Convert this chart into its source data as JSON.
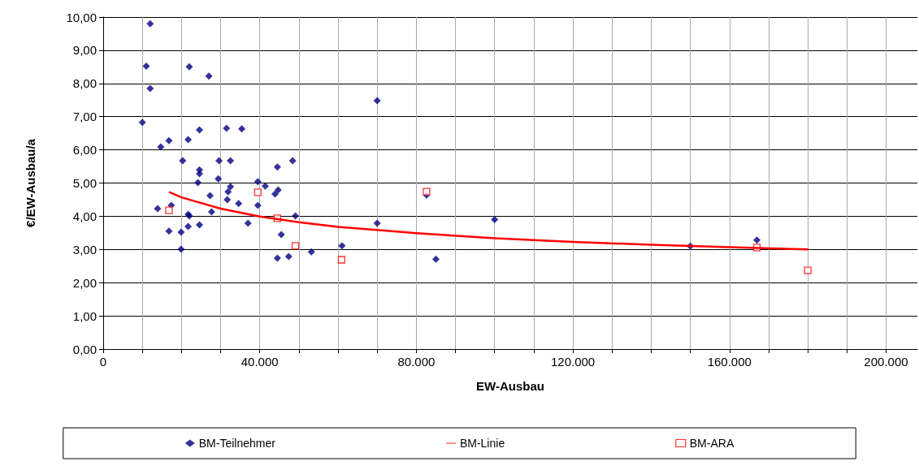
{
  "chart_data": {
    "type": "scatter",
    "xlabel": "EW-Ausbau",
    "ylabel": "€/EW-Ausbau/a",
    "xlim": [
      0,
      208000
    ],
    "xticks": [
      0,
      {
        "value": 10000,
        "label": null
      },
      {
        "value": 20000,
        "label": null
      },
      {
        "value": 30000,
        "label": null
      },
      {
        "value": 40000,
        "label": "40.000"
      },
      {
        "value": 50000,
        "label": null
      },
      {
        "value": 60000,
        "label": null
      },
      {
        "value": 70000,
        "label": null
      },
      {
        "value": 80000,
        "label": "80.000"
      },
      {
        "value": 90000,
        "label": null
      },
      {
        "value": 100000,
        "label": null
      },
      {
        "value": 110000,
        "label": null
      },
      {
        "value": 120000,
        "label": "120.000"
      },
      {
        "value": 130000,
        "label": null
      },
      {
        "value": 140000,
        "label": null
      },
      {
        "value": 150000,
        "label": null
      },
      {
        "value": 160000,
        "label": "160.000"
      },
      {
        "value": 170000,
        "label": null
      },
      {
        "value": 180000,
        "label": null
      },
      {
        "value": 190000,
        "label": null
      },
      {
        "value": 200000,
        "label": "200.000"
      }
    ],
    "ylim": [
      0,
      10
    ],
    "yticks": [
      {
        "value": 0,
        "label": "0,00"
      },
      {
        "value": 1,
        "label": "1,00"
      },
      {
        "value": 2,
        "label": "2,00"
      },
      {
        "value": 3,
        "label": "3,00"
      },
      {
        "value": 4,
        "label": "4,00"
      },
      {
        "value": 5,
        "label": "5,00"
      },
      {
        "value": 6,
        "label": "6,00"
      },
      {
        "value": 7,
        "label": "7,00"
      },
      {
        "value": 8,
        "label": "8,00"
      },
      {
        "value": 9,
        "label": "9,00"
      },
      {
        "value": 10,
        "label": "10,00"
      }
    ],
    "grid": true,
    "legend": "bottom",
    "series": [
      {
        "name": "BM-Teilnehmer",
        "type": "scatter",
        "marker": "diamond",
        "color": "#000080",
        "x": [
          12000,
          11000,
          22000,
          27000,
          12000,
          10000,
          24600,
          31500,
          35400,
          21700,
          16800,
          14700,
          20300,
          29600,
          32500,
          48400,
          44500,
          24600,
          24600,
          29400,
          24200,
          39500,
          41400,
          32500,
          31900,
          44700,
          43900,
          27300,
          82600,
          31700,
          34600,
          17400,
          39500,
          13900,
          21700,
          22000,
          49100,
          27700,
          100000,
          37000,
          70000,
          24600,
          21700,
          16800,
          19900,
          45500,
          19900,
          61000,
          150000,
          167000,
          53200,
          47400,
          44500,
          85000,
          70000
        ],
        "values": [
          9.8,
          8.52,
          8.5,
          8.22,
          7.85,
          6.83,
          6.6,
          6.65,
          6.63,
          6.31,
          6.28,
          6.09,
          5.67,
          5.67,
          5.67,
          5.67,
          5.48,
          5.4,
          5.28,
          5.13,
          5.01,
          5.04,
          4.91,
          4.89,
          4.74,
          4.79,
          4.67,
          4.62,
          4.64,
          4.5,
          4.38,
          4.33,
          4.33,
          4.23,
          4.06,
          4.01,
          4.01,
          4.13,
          3.9,
          3.79,
          3.79,
          3.74,
          3.69,
          3.55,
          3.52,
          3.45,
          3.01,
          3.11,
          3.1,
          3.28,
          2.93,
          2.79,
          2.74,
          2.71,
          7.48
        ]
      },
      {
        "name": "BM-Linie",
        "type": "line",
        "marker": "none",
        "line_style": "solid",
        "color": "#ff0000",
        "x": [
          17000,
          20000,
          30000,
          40000,
          50000,
          60000,
          80000,
          100000,
          120000,
          140000,
          160000,
          180000
        ],
        "values": [
          4.72,
          4.57,
          4.23,
          3.99,
          3.82,
          3.68,
          3.49,
          3.34,
          3.23,
          3.14,
          3.07,
          3.0
        ]
      },
      {
        "name": "BM-ARA",
        "type": "scatter",
        "marker": "square",
        "color": "#ff0000",
        "x": [
          16800,
          39500,
          44500,
          49100,
          60900,
          82600,
          167000,
          180000
        ],
        "values": [
          4.18,
          4.72,
          3.94,
          3.11,
          2.69,
          4.74,
          3.06,
          2.37
        ]
      }
    ]
  }
}
